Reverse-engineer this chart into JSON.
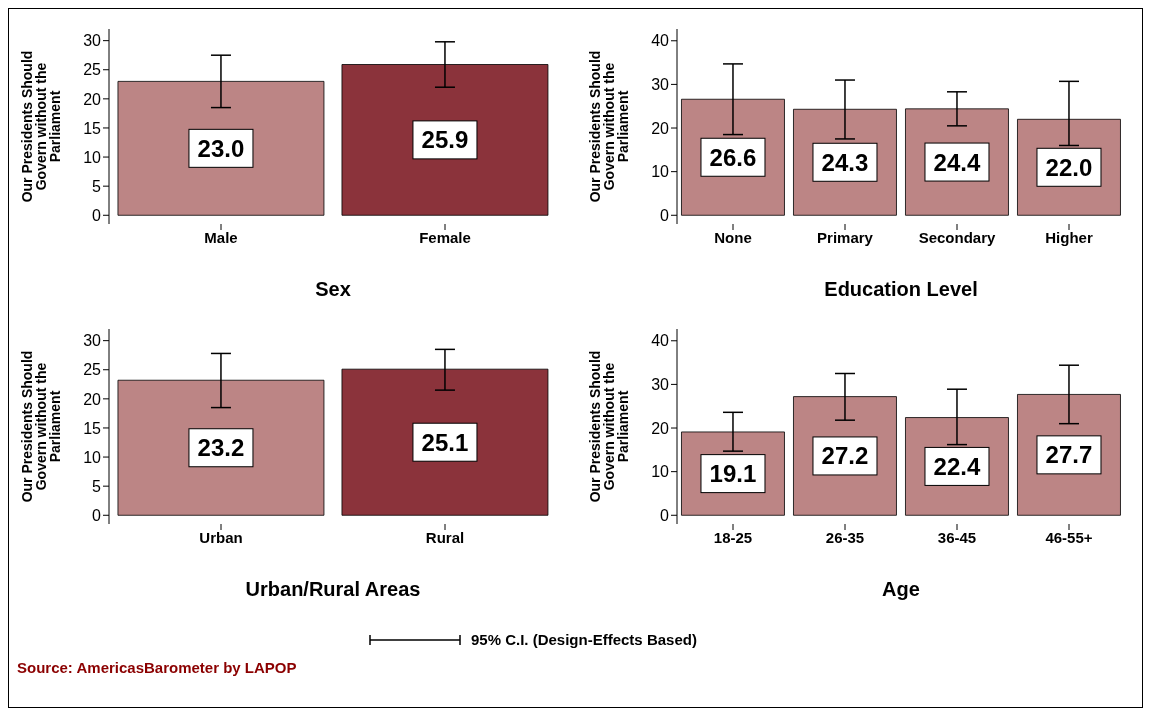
{
  "chart_data": [
    {
      "type": "bar",
      "xlabel": "Sex",
      "ylabel": "Our Presidents Should Govern without the Parliament",
      "categories": [
        "Male",
        "Female"
      ],
      "values": [
        23.0,
        25.9
      ],
      "value_labels": [
        "23.0",
        "25.9"
      ],
      "errors": [
        [
          18.5,
          27.5
        ],
        [
          22.0,
          29.8
        ]
      ],
      "colors": [
        "#bc8585",
        "#8b333b"
      ],
      "ylim": [
        -1.5,
        32
      ],
      "yticks": [
        0,
        5,
        10,
        15,
        20,
        25,
        30
      ]
    },
    {
      "type": "bar",
      "xlabel": "Education Level",
      "ylabel": "Our Presidents Should Govern without the Parliament",
      "categories": [
        "None",
        "Primary",
        "Secondary",
        "Higher"
      ],
      "values": [
        26.6,
        24.3,
        24.4,
        22.0
      ],
      "value_labels": [
        "26.6",
        "24.3",
        "24.4",
        "22.0"
      ],
      "errors": [
        [
          18.5,
          34.7
        ],
        [
          17.5,
          31.0
        ],
        [
          20.5,
          28.3
        ],
        [
          16.0,
          30.7
        ]
      ],
      "colors": [
        "#bc8585",
        "#bc8585",
        "#bc8585",
        "#bc8585"
      ],
      "ylim": [
        -2,
        42.7
      ],
      "yticks": [
        0,
        10,
        20,
        30,
        40
      ]
    },
    {
      "type": "bar",
      "xlabel": "Urban/Rural Areas",
      "ylabel": "Our Presidents Should Govern without the Parliament",
      "categories": [
        "Urban",
        "Rural"
      ],
      "values": [
        23.2,
        25.1
      ],
      "value_labels": [
        "23.2",
        "25.1"
      ],
      "errors": [
        [
          18.5,
          27.8
        ],
        [
          21.5,
          28.5
        ]
      ],
      "colors": [
        "#bc8585",
        "#8b333b"
      ],
      "ylim": [
        -1.5,
        32
      ],
      "yticks": [
        0,
        5,
        10,
        15,
        20,
        25,
        30
      ]
    },
    {
      "type": "bar",
      "xlabel": "Age",
      "ylabel": "Our Presidents Should Govern without the Parliament",
      "categories": [
        "18-25",
        "26-35",
        "36-45",
        "46-55+"
      ],
      "values": [
        19.1,
        27.2,
        22.4,
        27.7
      ],
      "value_labels": [
        "19.1",
        "27.2",
        "22.4",
        "27.7"
      ],
      "errors": [
        [
          14.7,
          23.6
        ],
        [
          21.8,
          32.5
        ],
        [
          16.2,
          28.9
        ],
        [
          21.0,
          34.4
        ]
      ],
      "colors": [
        "#bc8585",
        "#bc8585",
        "#bc8585",
        "#bc8585"
      ],
      "ylim": [
        -2,
        42.7
      ],
      "yticks": [
        0,
        10,
        20,
        30,
        40
      ],
      "annotations": [
        "95% C.I. (Design-Effects Based)",
        "Source: AmericasBarometer by LAPOP"
      ]
    }
  ]
}
